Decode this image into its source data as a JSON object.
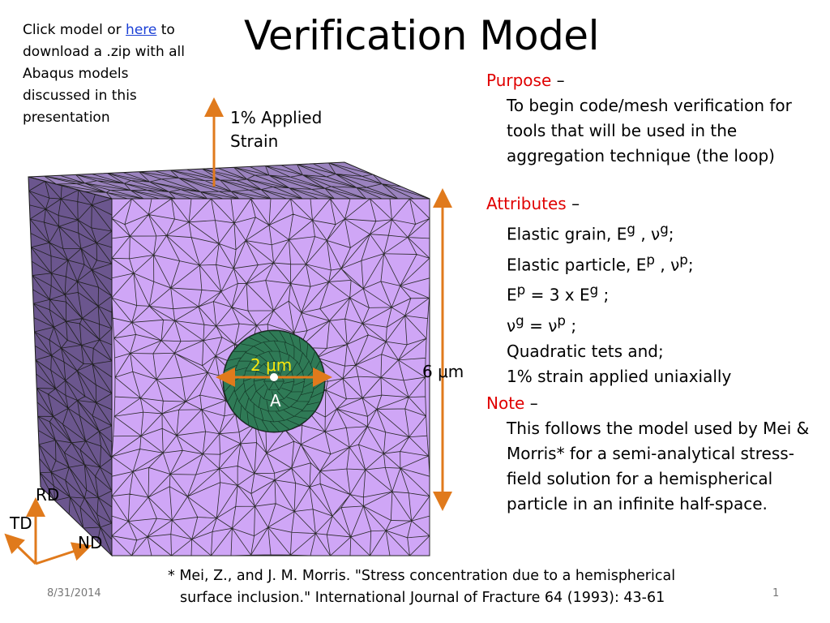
{
  "slide": {
    "title": "Verification Model",
    "click_note": {
      "prefix": "Click model or ",
      "link": "here",
      "suffix": " to download a .zip with all Abaqus models discussed in this presentation"
    },
    "figure": {
      "applied_strain_label": "1% Applied Strain",
      "dimension_label": "6 μm",
      "particle_label": "2 μm",
      "point_label": "A",
      "axes": {
        "rd": "RD",
        "td": "TD",
        "nd": "ND"
      },
      "colors": {
        "grain": "#cfa6f6",
        "grain_side": "#6b568e",
        "grain_top": "#9a82be",
        "particle": "#2f7a56",
        "arrow": "#e07a1c",
        "heading": "#e00000"
      }
    },
    "purpose": {
      "heading": "Purpose",
      "dash": " –",
      "text": "To begin code/mesh verification for tools that will be used in the aggregation technique (the loop)"
    },
    "attributes": {
      "heading": "Attributes",
      "dash": " –",
      "line1": {
        "text": "Elastic grain, E",
        "sup1": "g",
        "sep": " , ",
        "nu": "ν",
        "sup2": "g",
        "end": ";"
      },
      "line2": {
        "text": "Elastic particle, E",
        "sup1": "p",
        "sep": "  , ",
        "nu": "ν",
        "sup2": "p",
        "end": ";"
      },
      "line3": {
        "e": "E",
        "sup1": "p",
        "mid": "  =  3 x E",
        "sup2": "g",
        "end": " ;"
      },
      "line4": {
        "nu1": "ν",
        "sup1": "g",
        "mid": "  = ",
        "nu2": "ν",
        "sup2": "p",
        "end": " ;"
      },
      "line5": "Quadratic tets and;",
      "line6": "1% strain applied uniaxially"
    },
    "note": {
      "heading": "Note",
      "dash": " –",
      "text": "This follows the model used by Mei & Morris* for a semi-analytical stress-field solution for a hemispherical particle in an infinite half-space."
    },
    "reference": {
      "line1": "* Mei, Z., and J. M. Morris. \"Stress concentration due to  a hemispherical",
      "line2": "surface inclusion.\" International Journal of Fracture 64 (1993): 43-61"
    },
    "footer": {
      "date": "8/31/2014",
      "page": "1"
    }
  }
}
